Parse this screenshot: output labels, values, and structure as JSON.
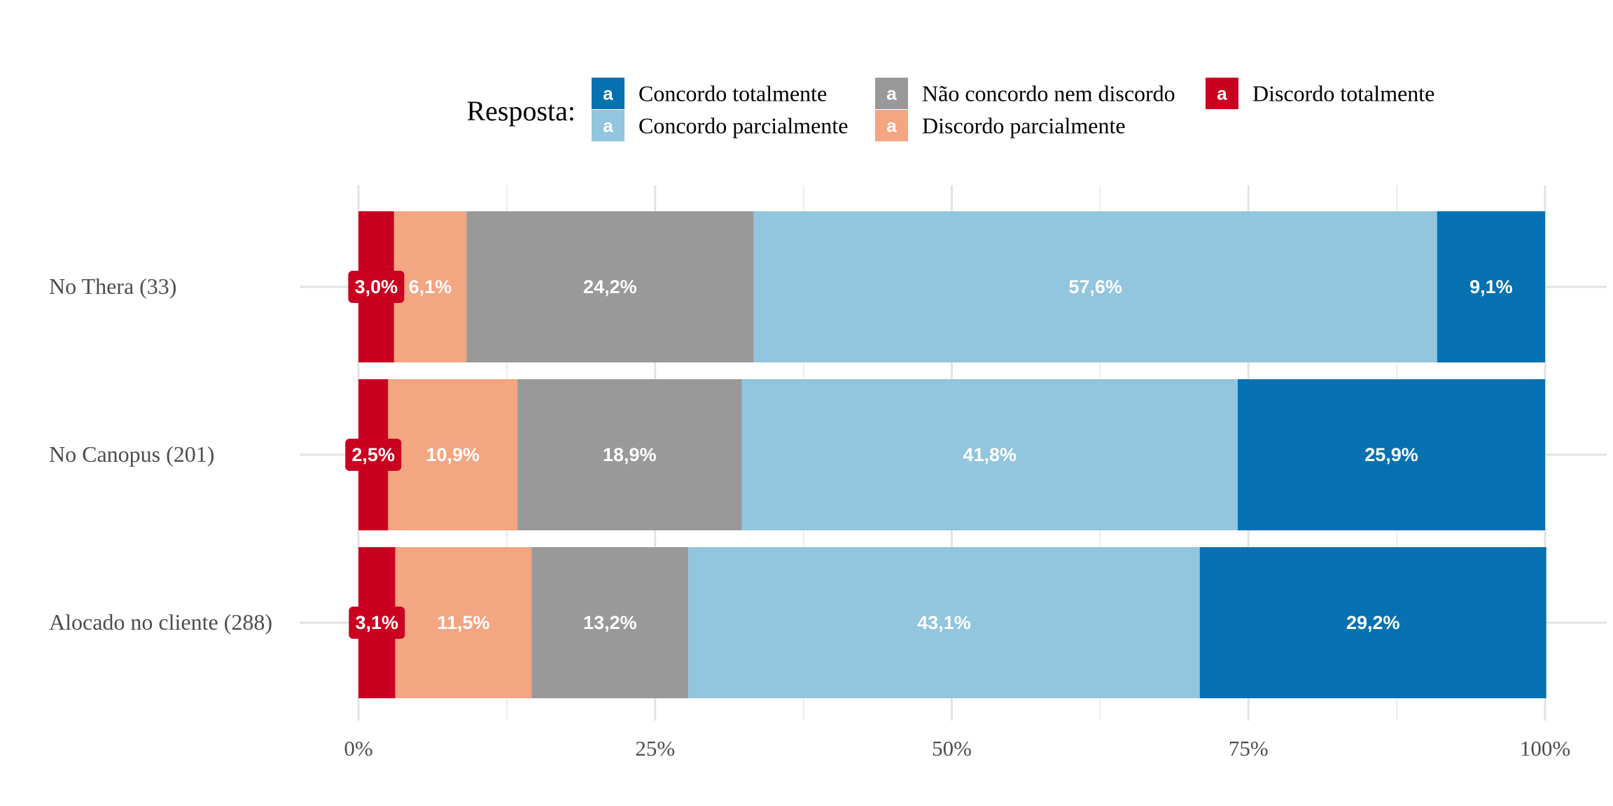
{
  "chart_data": {
    "type": "bar",
    "orientation": "horizontal-stacked-percent",
    "legend": {
      "title": "Resposta:",
      "placement": "top",
      "key_glyph": "a",
      "items": [
        {
          "label": "Concordo totalmente",
          "color": "#0571b0"
        },
        {
          "label": "Concordo parcialmente",
          "color": "#92c5de"
        },
        {
          "label": "Não concordo nem discordo",
          "color": "#999999"
        },
        {
          "label": "Discordo parcialmente",
          "color": "#f4a582"
        },
        {
          "label": "Discordo totalmente",
          "color": "#ca0020"
        }
      ]
    },
    "categories": [
      "No Thera (33)",
      "No Canopus (201)",
      "Alocado no cliente (288)"
    ],
    "series": [
      {
        "name": "Discordo totalmente",
        "color": "#ca0020",
        "values": [
          3.0,
          2.5,
          3.1
        ],
        "labels": [
          "3,0%",
          "2,5%",
          "3,1%"
        ]
      },
      {
        "name": "Discordo parcialmente",
        "color": "#f4a582",
        "values": [
          6.1,
          10.9,
          11.5
        ],
        "labels": [
          "6,1%",
          "10,9%",
          "11,5%"
        ]
      },
      {
        "name": "Não concordo nem discordo",
        "color": "#999999",
        "values": [
          24.2,
          18.9,
          13.2
        ],
        "labels": [
          "24,2%",
          "18,9%",
          "13,2%"
        ]
      },
      {
        "name": "Concordo parcialmente",
        "color": "#92c5de",
        "values": [
          57.6,
          41.8,
          43.1
        ],
        "labels": [
          "57,6%",
          "41,8%",
          "43,1%"
        ]
      },
      {
        "name": "Concordo totalmente",
        "color": "#0571b0",
        "values": [
          9.1,
          25.9,
          29.2
        ],
        "labels": [
          "9,1%",
          "25,9%",
          "29,2%"
        ]
      }
    ],
    "xlim": [
      0,
      100
    ],
    "xticks": [
      0,
      25,
      50,
      75,
      100
    ],
    "xtick_labels": [
      "0%",
      "25%",
      "50%",
      "75%",
      "100%"
    ],
    "grid": true,
    "xlabel": "",
    "ylabel": "",
    "title": ""
  }
}
